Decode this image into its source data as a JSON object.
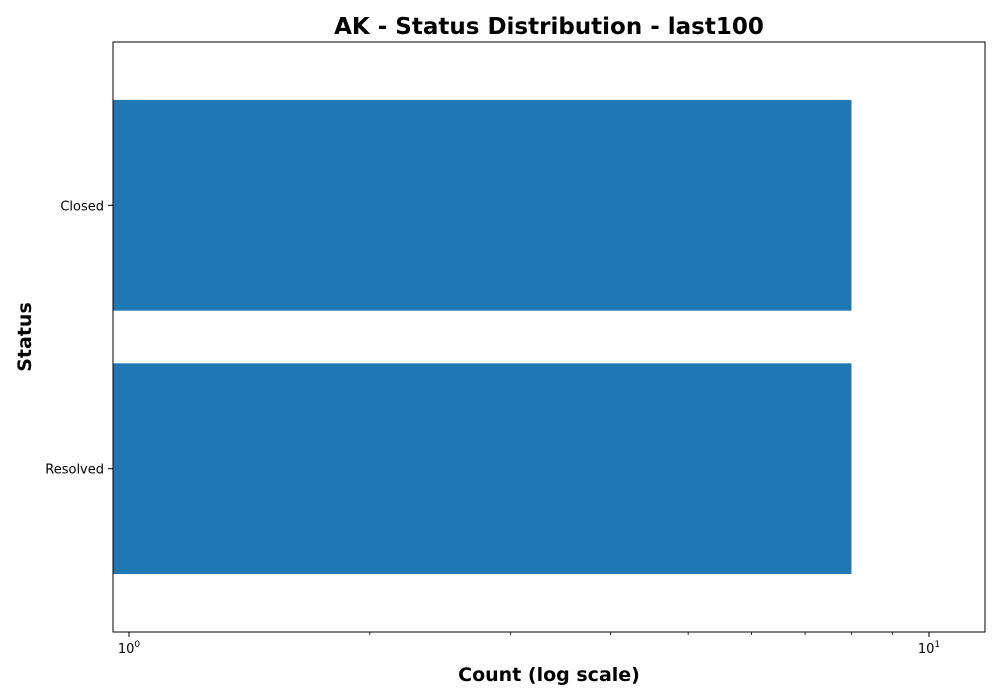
{
  "chart_data": {
    "type": "bar",
    "orientation": "horizontal",
    "title": "AK - Status Distribution - last100",
    "xlabel": "Count (log scale)",
    "ylabel": "Status",
    "x_scale": "log",
    "xlim": [
      0.955,
      11.75
    ],
    "categories": [
      "Closed",
      "Resolved"
    ],
    "values": [
      8,
      8
    ],
    "x_ticks": [
      {
        "base": "10",
        "exp": "0",
        "value": 1
      },
      {
        "base": "10",
        "exp": "1",
        "value": 10
      }
    ],
    "minor_ticks": [
      2,
      3,
      4,
      5,
      6,
      7,
      8,
      9
    ],
    "bar_color": "#1f77b4",
    "grid": false,
    "legend": "none"
  }
}
